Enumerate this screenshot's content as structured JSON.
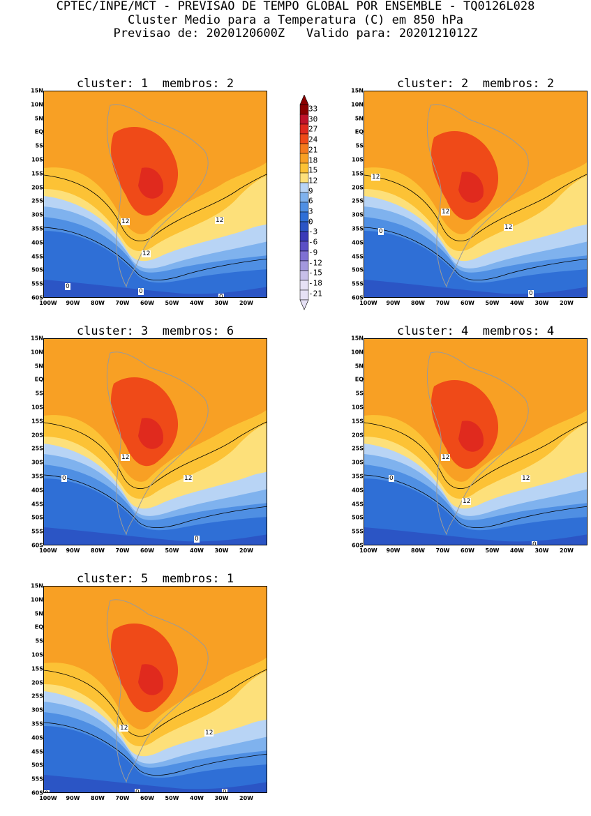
{
  "header": {
    "line1": "CPTEC/INPE/MCT - PREVISAO DE TEMPO GLOBAL POR ENSEMBLE - TQ0126L028",
    "line2": "Cluster Medio para a Temperatura (C) em 850 hPa",
    "line3": "Previsao de: 2020120600Z   Valido para: 2020121012Z"
  },
  "panels": [
    {
      "title": "cluster: 1  membros: 2",
      "contours": [
        "12",
        "12",
        "12",
        "0",
        "0",
        "0"
      ]
    },
    {
      "title": "cluster: 2  membros: 2",
      "contours": [
        "12",
        "12",
        "12",
        "0",
        "0"
      ]
    },
    {
      "title": "cluster: 3  membros: 6",
      "contours": [
        "12",
        "12",
        "0",
        "0"
      ]
    },
    {
      "title": "cluster: 4  membros: 4",
      "contours": [
        "12",
        "12",
        "12",
        "0",
        "0"
      ]
    },
    {
      "title": "cluster: 5  membros: 1",
      "contours": [
        "12",
        "12",
        "0",
        "0",
        "0"
      ]
    }
  ],
  "axes": {
    "lat_labels": [
      "15N",
      "10N",
      "5N",
      "EQ",
      "5S",
      "10S",
      "15S",
      "20S",
      "25S",
      "30S",
      "35S",
      "40S",
      "45S",
      "50S",
      "55S",
      "60S"
    ],
    "lon_labels": [
      "100W",
      "90W",
      "80W",
      "70W",
      "60W",
      "50W",
      "40W",
      "30W",
      "20W"
    ]
  },
  "colorbar": {
    "labels": [
      "33",
      "30",
      "27",
      "24",
      "21",
      "18",
      "15",
      "12",
      "9",
      "6",
      "3",
      "0",
      "-3",
      "-6",
      "-9",
      "-12",
      "-15",
      "-18",
      "-21"
    ],
    "colors": [
      "#8b0000",
      "#c0132a",
      "#e02a1e",
      "#ef4a18",
      "#f47a1d",
      "#f8a024",
      "#fcc235",
      "#fde07a",
      "#b8d4f5",
      "#7fb2ee",
      "#4f8fe3",
      "#2f6fd6",
      "#2b55c5",
      "#3a3ab8",
      "#5b4fc6",
      "#7f71d3",
      "#a398de",
      "#c7bfe9",
      "#e6e1f5"
    ]
  }
}
